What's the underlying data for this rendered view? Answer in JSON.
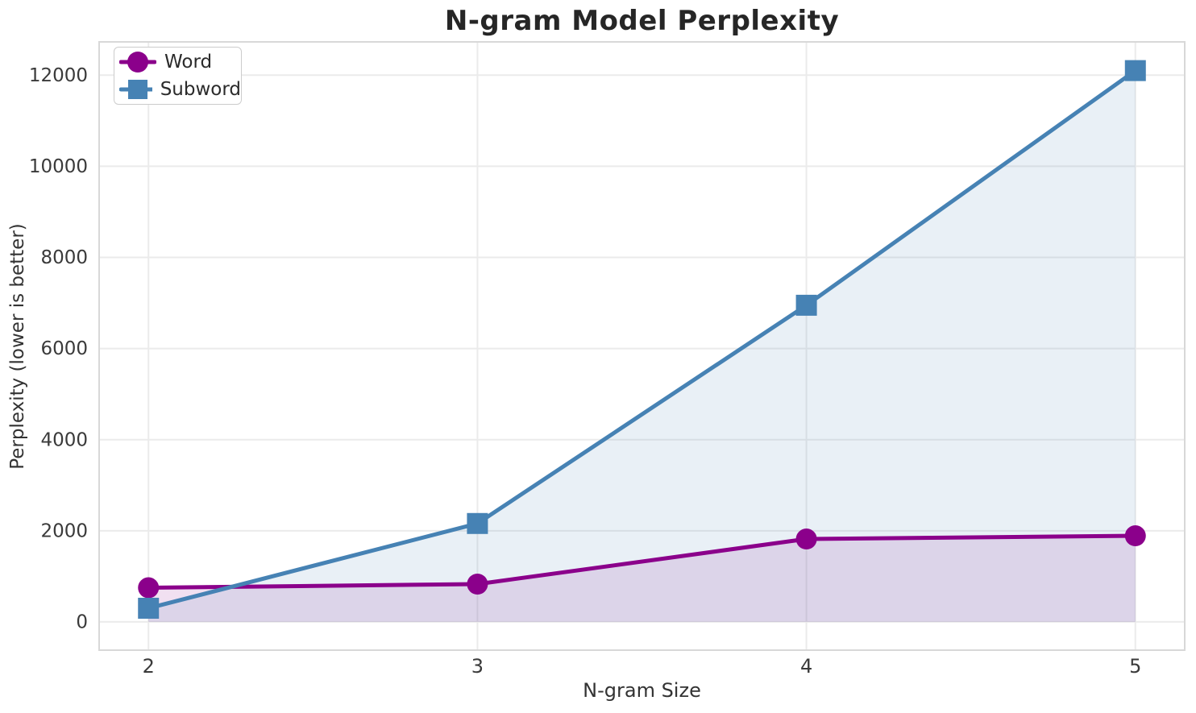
{
  "title": "N-gram Model Perplexity",
  "chart_data": {
    "type": "line",
    "title": "N-gram Model Perplexity",
    "xlabel": "N-gram Size",
    "ylabel": "Perplexity (lower is better)",
    "x": [
      2,
      3,
      4,
      5
    ],
    "xticks": [
      2,
      3,
      4,
      5
    ],
    "yticks": [
      0,
      2000,
      4000,
      6000,
      8000,
      10000,
      12000
    ],
    "xlim": [
      1.85,
      5.15
    ],
    "ylim": [
      -620,
      12730
    ],
    "grid": true,
    "legend_position": "upper left",
    "series": [
      {
        "name": "Word",
        "marker": "circle",
        "color": "#8B008B",
        "fill_opacity": 0.12,
        "values": [
          750,
          830,
          1820,
          1890
        ]
      },
      {
        "name": "Subword",
        "marker": "square",
        "color": "#4682B4",
        "fill_opacity": 0.12,
        "values": [
          300,
          2160,
          6950,
          12100
        ]
      }
    ],
    "style": {
      "background": "#ffffff",
      "grid_color": "#ebebeb",
      "spine_color": "#d8d8d8",
      "tick_color": "#3a3a3a",
      "line_width": 5,
      "marker_size": 13
    }
  }
}
